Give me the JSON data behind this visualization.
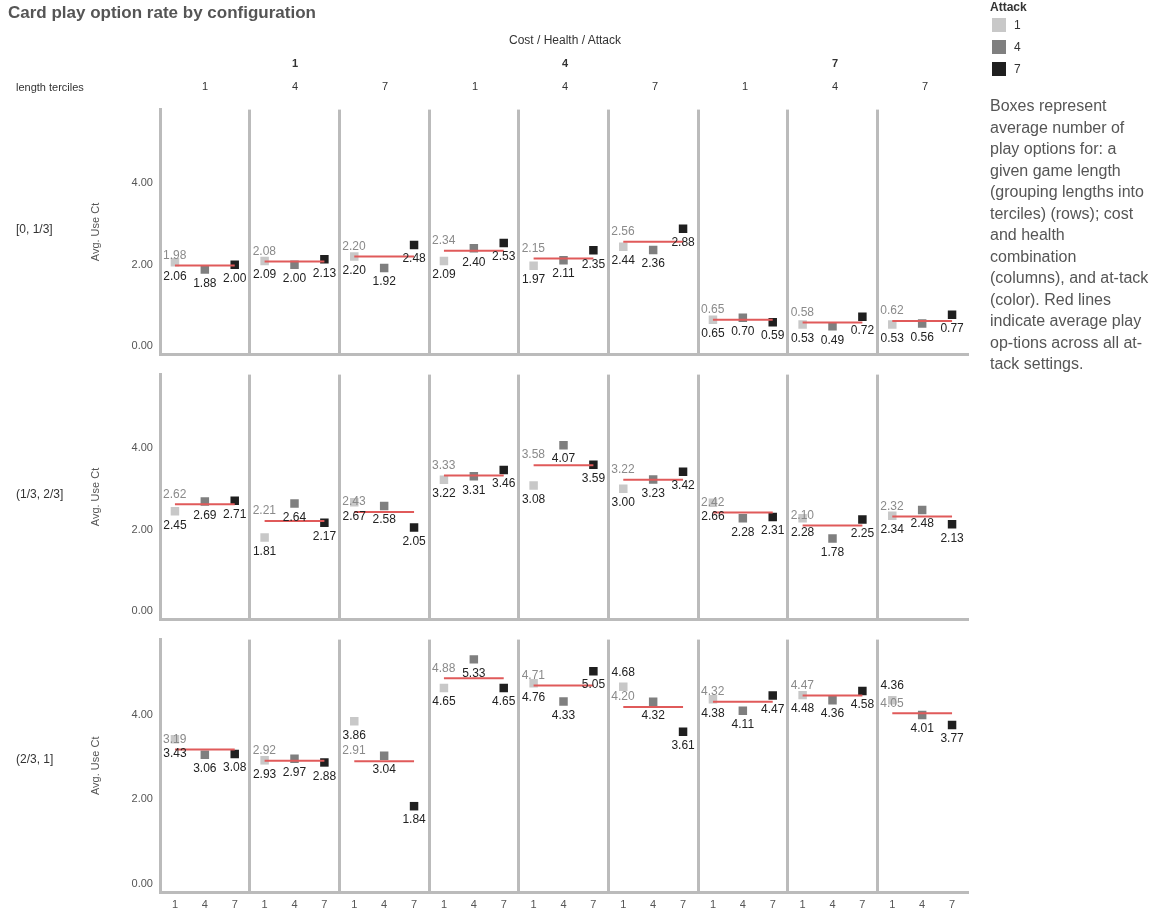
{
  "chart_data": [
    {
      "type": "other",
      "title": "Card play option rate by configuration",
      "subtitle": "Cost / Health / Attack",
      "legend_title": "Attack",
      "categories": [
        "1",
        "4",
        "7"
      ],
      "colors": [
        "#c8c8c8",
        "#7f7f7f",
        "#1f1f1f"
      ],
      "annotations": [
        "length terciles",
        "Boxes represent average number of play options for: a given game length (grouping lengths into terciles) (rows); cost and health combination (columns), and at-tack (color). Red lines indicate average play op-tions across all at-tack settings.",
        "1",
        "4",
        "7",
        "1",
        "4",
        "7",
        "1",
        "4",
        "7",
        "1",
        "4",
        "7"
      ]
    },
    {
      "type": "scatter",
      "ylabel": "Avg. Use Ct",
      "annotations": [
        "[0, 1/3]"
      ],
      "tick_labels": "y",
      "marker": "square",
      "ylim": [
        -0.2,
        5.8
      ],
      "yticks": [
        {
          "value": 0,
          "label": "0.00"
        },
        {
          "value": 2,
          "label": "2.00"
        },
        {
          "value": 4,
          "label": "4.00"
        }
      ],
      "categories": [
        "1",
        "4",
        "7",
        "1",
        "4",
        "7",
        "1",
        "4",
        "7",
        "1",
        "4",
        "7",
        "1",
        "4",
        "7",
        "1",
        "4",
        "7",
        "1",
        "4",
        "7",
        "1",
        "4",
        "7",
        "1",
        "4",
        "7"
      ],
      "values": [
        2.06,
        1.88,
        2.0,
        2.09,
        2.0,
        2.13,
        2.2,
        1.92,
        2.48,
        2.09,
        2.4,
        2.53,
        1.97,
        2.11,
        2.35,
        2.44,
        2.36,
        2.88,
        0.65,
        0.7,
        0.59,
        0.53,
        0.49,
        0.72,
        0.53,
        0.56,
        0.77
      ],
      "value_labels": [
        "2.06",
        "1.88",
        "2.00",
        "2.09",
        "2.00",
        "2.13",
        "2.20",
        "1.92",
        "2.48",
        "2.09",
        "2.40",
        "2.53",
        "1.97",
        "2.11",
        "2.35",
        "2.44",
        "2.36",
        "2.88",
        "0.65",
        "0.70",
        "0.59",
        "0.53",
        "0.49",
        "0.72",
        "0.53",
        "0.56",
        "0.77"
      ],
      "colors": [
        "#c8c8c8",
        "#7f7f7f",
        "#1f1f1f",
        "#c8c8c8",
        "#7f7f7f",
        "#1f1f1f",
        "#c8c8c8",
        "#7f7f7f",
        "#1f1f1f",
        "#c8c8c8",
        "#7f7f7f",
        "#1f1f1f",
        "#c8c8c8",
        "#7f7f7f",
        "#1f1f1f",
        "#c8c8c8",
        "#7f7f7f",
        "#1f1f1f",
        "#c8c8c8",
        "#7f7f7f",
        "#1f1f1f",
        "#c8c8c8",
        "#7f7f7f",
        "#1f1f1f",
        "#c8c8c8",
        "#7f7f7f",
        "#1f1f1f"
      ],
      "series": [
        {
          "type": "line",
          "marker": "none",
          "color": "#e05a5a",
          "values": [
            1.98,
            1.98,
            1.98,
            2.08,
            2.08,
            2.08,
            2.2,
            2.2,
            2.2,
            2.34,
            2.34,
            2.34,
            2.15,
            2.15,
            2.15,
            2.56,
            2.56,
            2.56,
            0.65,
            0.65,
            0.65,
            0.58,
            0.58,
            0.58,
            0.62,
            0.62,
            0.62
          ],
          "value_labels": [
            "1.98",
            null,
            null,
            "2.08",
            null,
            null,
            "2.20",
            null,
            null,
            "2.34",
            null,
            null,
            "2.15",
            null,
            null,
            "2.56",
            null,
            null,
            "0.65",
            null,
            null,
            "0.58",
            null,
            null,
            "0.62",
            null,
            null
          ]
        }
      ]
    },
    {
      "type": "scatter",
      "ylabel": "Avg. Use Ct",
      "annotations": [
        "(1/3, 2/3]"
      ],
      "tick_labels": "y",
      "marker": "square",
      "ylim": [
        -0.2,
        5.8
      ],
      "yticks": [
        {
          "value": 0,
          "label": "0.00"
        },
        {
          "value": 2,
          "label": "2.00"
        },
        {
          "value": 4,
          "label": "4.00"
        }
      ],
      "categories": [
        "1",
        "4",
        "7",
        "1",
        "4",
        "7",
        "1",
        "4",
        "7",
        "1",
        "4",
        "7",
        "1",
        "4",
        "7",
        "1",
        "4",
        "7",
        "1",
        "4",
        "7",
        "1",
        "4",
        "7",
        "1",
        "4",
        "7"
      ],
      "values": [
        2.45,
        2.69,
        2.71,
        1.81,
        2.64,
        2.17,
        2.67,
        2.58,
        2.05,
        3.22,
        3.31,
        3.46,
        3.08,
        4.07,
        3.59,
        3.0,
        3.23,
        3.42,
        2.66,
        2.28,
        2.31,
        2.28,
        1.78,
        2.25,
        2.34,
        2.48,
        2.13
      ],
      "value_labels": [
        "2.45",
        "2.69",
        "2.71",
        "1.81",
        "2.64",
        "2.17",
        "2.67",
        "2.58",
        "2.05",
        "3.22",
        "3.31",
        "3.46",
        "3.08",
        "4.07",
        "3.59",
        "3.00",
        "3.23",
        "3.42",
        "2.66",
        "2.28",
        "2.31",
        "2.28",
        "1.78",
        "2.25",
        "2.34",
        "2.48",
        "2.13"
      ],
      "colors": [
        "#c8c8c8",
        "#7f7f7f",
        "#1f1f1f",
        "#c8c8c8",
        "#7f7f7f",
        "#1f1f1f",
        "#c8c8c8",
        "#7f7f7f",
        "#1f1f1f",
        "#c8c8c8",
        "#7f7f7f",
        "#1f1f1f",
        "#c8c8c8",
        "#7f7f7f",
        "#1f1f1f",
        "#c8c8c8",
        "#7f7f7f",
        "#1f1f1f",
        "#c8c8c8",
        "#7f7f7f",
        "#1f1f1f",
        "#c8c8c8",
        "#7f7f7f",
        "#1f1f1f",
        "#c8c8c8",
        "#7f7f7f",
        "#1f1f1f"
      ],
      "series": [
        {
          "type": "line",
          "marker": "none",
          "color": "#e05a5a",
          "values": [
            2.62,
            2.62,
            2.62,
            2.21,
            2.21,
            2.21,
            2.43,
            2.43,
            2.43,
            3.33,
            3.33,
            3.33,
            3.58,
            3.58,
            3.58,
            3.22,
            3.22,
            3.22,
            2.42,
            2.42,
            2.42,
            2.1,
            2.1,
            2.1,
            2.32,
            2.32,
            2.32
          ],
          "value_labels": [
            "2.62",
            null,
            null,
            "2.21",
            null,
            null,
            "2.43",
            null,
            null,
            "3.33",
            null,
            null,
            "3.58",
            null,
            null,
            "3.22",
            null,
            null,
            "2.42",
            null,
            null,
            "2.10",
            null,
            null,
            "2.32",
            null,
            null
          ]
        }
      ]
    },
    {
      "type": "scatter",
      "ylabel": "Avg. Use Ct",
      "annotations": [
        "(2/3, 1]"
      ],
      "marker": "square",
      "ylim": [
        -0.2,
        5.8
      ],
      "yticks": [
        {
          "value": 0,
          "label": "0.00"
        },
        {
          "value": 2,
          "label": "2.00"
        },
        {
          "value": 4,
          "label": "4.00"
        }
      ],
      "categories": [
        "1",
        "4",
        "7",
        "1",
        "4",
        "7",
        "1",
        "4",
        "7",
        "1",
        "4",
        "7",
        "1",
        "4",
        "7",
        "1",
        "4",
        "7",
        "1",
        "4",
        "7",
        "1",
        "4",
        "7",
        "1",
        "4",
        "7"
      ],
      "values": [
        3.43,
        3.06,
        3.08,
        2.93,
        2.97,
        2.88,
        3.86,
        3.04,
        1.84,
        4.65,
        5.33,
        4.65,
        4.76,
        4.33,
        5.05,
        4.68,
        4.32,
        3.61,
        4.38,
        4.11,
        4.47,
        4.48,
        4.36,
        4.58,
        4.36,
        4.01,
        3.77
      ],
      "value_labels": [
        "3.43",
        "3.06",
        "3.08",
        "2.93",
        "2.97",
        "2.88",
        "3.86",
        "3.04",
        "1.84",
        "4.65",
        "5.33",
        "4.65",
        "4.76",
        "4.33",
        "5.05",
        "4.68",
        "4.32",
        "3.61",
        "4.38",
        "4.11",
        "4.47",
        "4.48",
        "4.36",
        "4.58",
        "4.36",
        "4.01",
        "3.77"
      ],
      "colors": [
        "#c8c8c8",
        "#7f7f7f",
        "#1f1f1f",
        "#c8c8c8",
        "#7f7f7f",
        "#1f1f1f",
        "#c8c8c8",
        "#7f7f7f",
        "#1f1f1f",
        "#c8c8c8",
        "#7f7f7f",
        "#1f1f1f",
        "#c8c8c8",
        "#7f7f7f",
        "#1f1f1f",
        "#c8c8c8",
        "#7f7f7f",
        "#1f1f1f",
        "#c8c8c8",
        "#7f7f7f",
        "#1f1f1f",
        "#c8c8c8",
        "#7f7f7f",
        "#1f1f1f",
        "#c8c8c8",
        "#7f7f7f",
        "#1f1f1f"
      ],
      "series": [
        {
          "type": "line",
          "marker": "none",
          "color": "#e05a5a",
          "values": [
            3.19,
            3.19,
            3.19,
            2.92,
            2.92,
            2.92,
            2.91,
            2.91,
            2.91,
            4.88,
            4.88,
            4.88,
            4.71,
            4.71,
            4.71,
            4.2,
            4.2,
            4.2,
            4.32,
            4.32,
            4.32,
            4.47,
            4.47,
            4.47,
            4.05,
            4.05,
            4.05
          ],
          "value_labels": [
            "3.19",
            null,
            null,
            "2.92",
            null,
            null,
            "2.91",
            null,
            null,
            "4.88",
            null,
            null,
            "4.71",
            null,
            null,
            "4.20",
            null,
            null,
            "4.32",
            null,
            null,
            "4.47",
            null,
            null,
            "4.05",
            null,
            null
          ]
        }
      ]
    }
  ]
}
